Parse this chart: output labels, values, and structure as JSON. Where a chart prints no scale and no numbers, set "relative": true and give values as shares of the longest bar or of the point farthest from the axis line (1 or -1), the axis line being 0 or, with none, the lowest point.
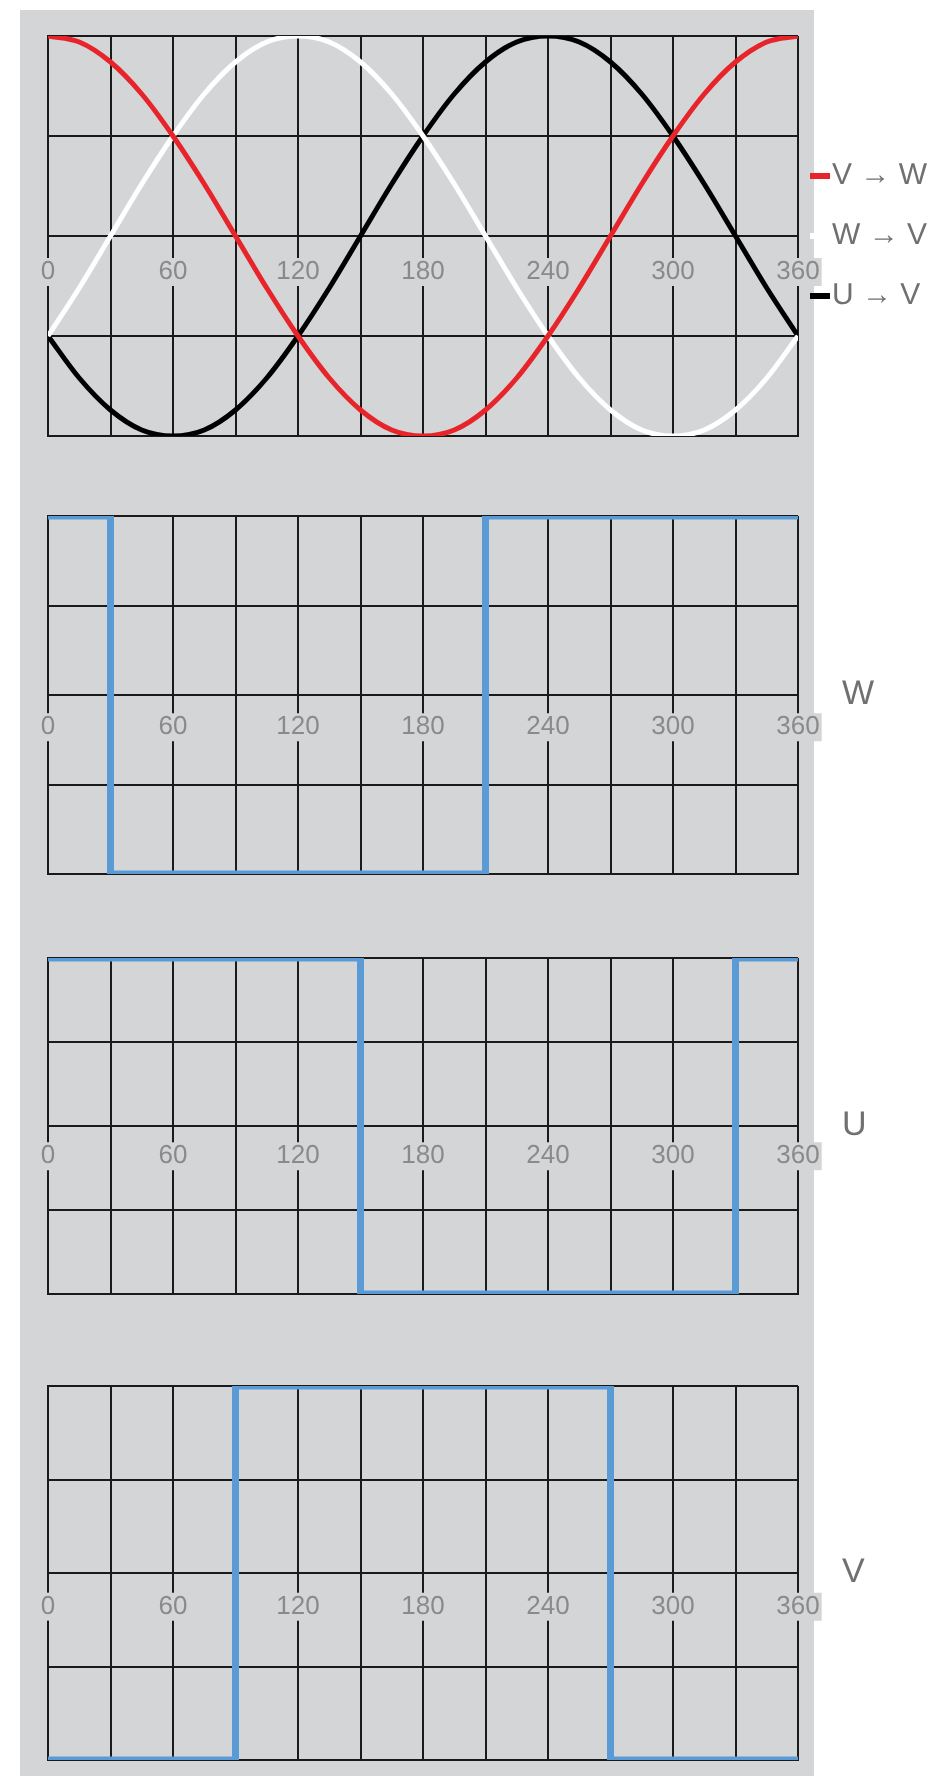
{
  "chart_data": [
    {
      "type": "line",
      "relative": true,
      "legend": "right",
      "grid": true,
      "marker": "none",
      "xlim": [
        0,
        360
      ],
      "xticks": [
        0,
        {
          "value": 30,
          "label": null
        },
        60,
        {
          "value": 90,
          "label": null
        },
        120,
        {
          "value": 150,
          "label": null
        },
        180,
        {
          "value": 210,
          "label": null
        },
        240,
        {
          "value": 270,
          "label": null
        },
        300,
        {
          "value": 330,
          "label": null
        },
        360
      ],
      "x": [
        0,
        15,
        30,
        45,
        60,
        75,
        90,
        105,
        120,
        135,
        150,
        165,
        180,
        195,
        210,
        225,
        240,
        255,
        270,
        285,
        300,
        315,
        330,
        345,
        360
      ],
      "series": [
        {
          "name": "V → W",
          "color": "#e8242b",
          "values": [
            1,
            0.97,
            0.87,
            0.71,
            0.5,
            0.26,
            0,
            -0.26,
            -0.5,
            -0.71,
            -0.87,
            -0.97,
            -1,
            -0.97,
            -0.87,
            -0.71,
            -0.5,
            -0.26,
            0,
            0.26,
            0.5,
            0.71,
            0.87,
            0.97,
            1
          ]
        },
        {
          "name": "W → V",
          "color": "#ffffff",
          "values": [
            -0.5,
            -0.26,
            0,
            0.26,
            0.5,
            0.71,
            0.87,
            0.97,
            1,
            0.97,
            0.87,
            0.71,
            0.5,
            0.26,
            0,
            -0.26,
            -0.5,
            -0.71,
            -0.87,
            -0.97,
            -1,
            -0.97,
            -0.87,
            -0.71,
            -0.5
          ]
        },
        {
          "name": "U → V",
          "color": "#000000",
          "values": [
            -0.5,
            -0.71,
            -0.87,
            -0.97,
            -1,
            -0.97,
            -0.87,
            -0.71,
            -0.5,
            -0.26,
            0,
            0.26,
            0.5,
            0.71,
            0.87,
            0.97,
            1,
            0.97,
            0.87,
            0.71,
            0.5,
            0.26,
            0,
            -0.26,
            -0.5
          ]
        }
      ]
    },
    {
      "type": "step",
      "relative": true,
      "legend": false,
      "grid": true,
      "marker": "none",
      "xlim": [
        0,
        360
      ],
      "xticks": [
        0,
        {
          "value": 30,
          "label": null
        },
        60,
        {
          "value": 90,
          "label": null
        },
        120,
        {
          "value": 150,
          "label": null
        },
        180,
        {
          "value": 210,
          "label": null
        },
        240,
        {
          "value": 270,
          "label": null
        },
        300,
        {
          "value": 330,
          "label": null
        },
        360
      ],
      "series": [
        {
          "name": "W",
          "color": "#5b9bd5",
          "x": [
            0,
            30,
            210,
            360
          ],
          "values": [
            1,
            -1,
            1,
            1
          ]
        }
      ]
    },
    {
      "type": "step",
      "relative": true,
      "legend": false,
      "grid": true,
      "marker": "none",
      "xlim": [
        0,
        360
      ],
      "xticks": [
        0,
        {
          "value": 30,
          "label": null
        },
        60,
        {
          "value": 90,
          "label": null
        },
        120,
        {
          "value": 150,
          "label": null
        },
        180,
        {
          "value": 210,
          "label": null
        },
        240,
        {
          "value": 270,
          "label": null
        },
        300,
        {
          "value": 330,
          "label": null
        },
        360
      ],
      "series": [
        {
          "name": "U",
          "color": "#5b9bd5",
          "x": [
            0,
            150,
            330,
            360
          ],
          "values": [
            1,
            -1,
            1,
            1
          ]
        }
      ]
    },
    {
      "type": "step",
      "relative": true,
      "legend": false,
      "grid": true,
      "marker": "none",
      "xlim": [
        0,
        360
      ],
      "xticks": [
        0,
        {
          "value": 30,
          "label": null
        },
        60,
        {
          "value": 90,
          "label": null
        },
        120,
        {
          "value": 150,
          "label": null
        },
        180,
        {
          "value": 210,
          "label": null
        },
        240,
        {
          "value": 270,
          "label": null
        },
        300,
        {
          "value": 330,
          "label": null
        },
        360
      ],
      "series": [
        {
          "name": "V",
          "color": "#5b9bd5",
          "x": [
            0,
            90,
            270,
            360
          ],
          "values": [
            -1,
            1,
            -1,
            -1
          ]
        }
      ]
    }
  ]
}
